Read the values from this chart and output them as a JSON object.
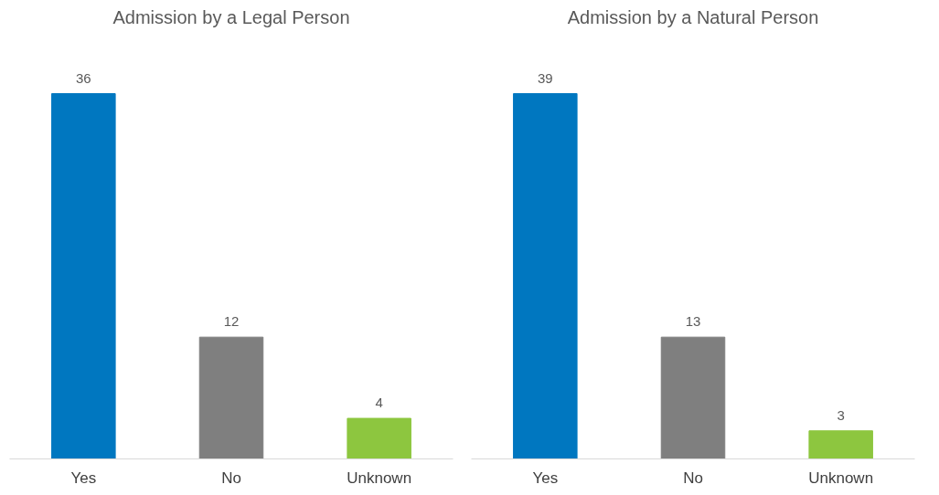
{
  "chart_data": [
    {
      "type": "bar",
      "title": "Admission by a Legal Person",
      "categories": [
        "Yes",
        "No",
        "Unknown"
      ],
      "values": [
        36,
        12,
        4
      ],
      "colors": [
        "#0077c0",
        "#7f7f7f",
        "#8dc63f"
      ],
      "data_labels": true
    },
    {
      "type": "bar",
      "title": "Admission by a Natural Person",
      "categories": [
        "Yes",
        "No",
        "Unknown"
      ],
      "values": [
        39,
        13,
        3
      ],
      "colors": [
        "#0077c0",
        "#7f7f7f",
        "#8dc63f"
      ],
      "data_labels": true
    }
  ]
}
